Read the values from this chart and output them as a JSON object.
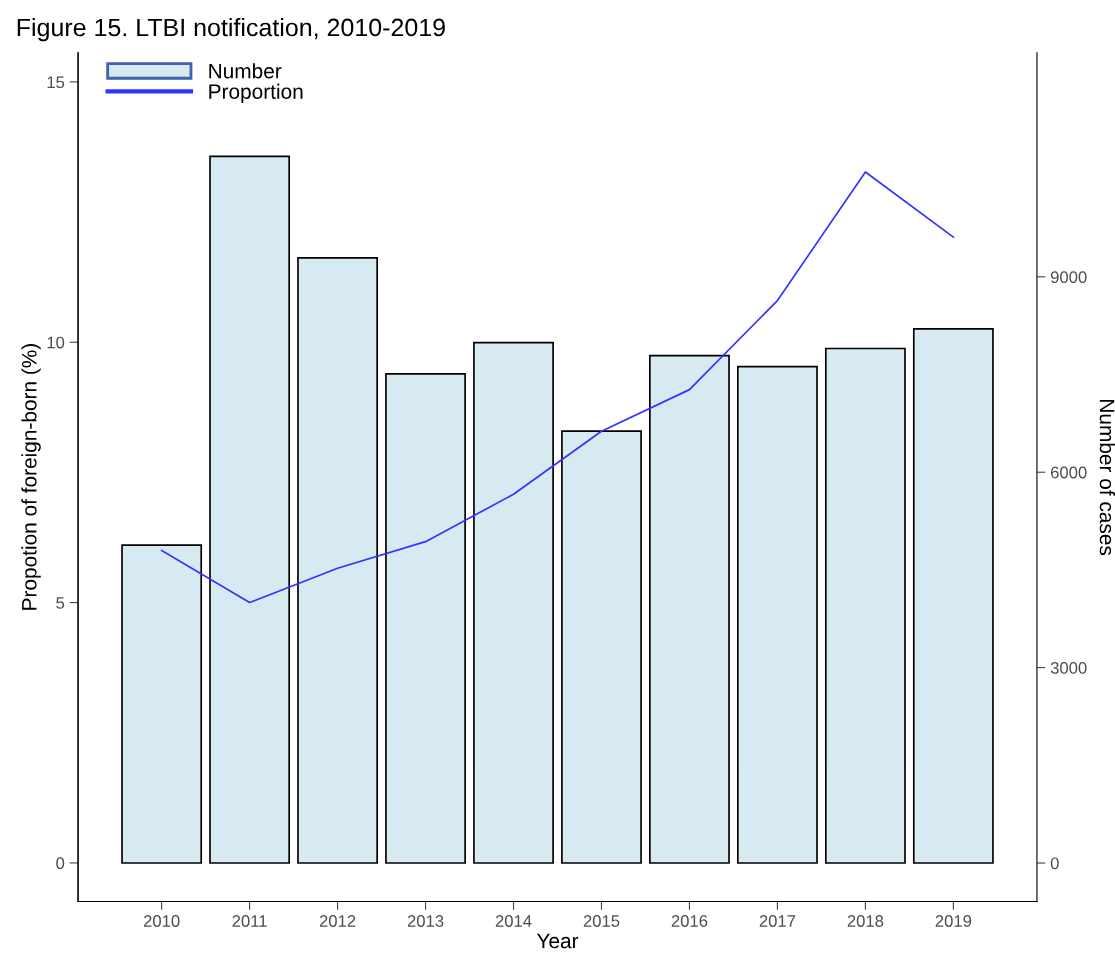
{
  "chart_data": {
    "type": "bar",
    "title": "Figure 15. LTBI notification, 2010-2019",
    "xlabel": "Year",
    "ylabel": "Propotion of foreign-born (%)",
    "y2label": "Number of cases",
    "categories": [
      "2010",
      "2011",
      "2012",
      "2013",
      "2014",
      "2015",
      "2016",
      "2017",
      "2018",
      "2019"
    ],
    "series": [
      {
        "name": "Number",
        "axis": "y2",
        "color": "#d7eaf1",
        "values": [
          4880,
          10850,
          9290,
          7510,
          7990,
          6630,
          7790,
          7620,
          7900,
          8200
        ]
      },
      {
        "name": "Proportion",
        "type": "line",
        "axis": "y",
        "color": "#3333ff",
        "values": [
          6.0,
          5.0,
          5.66,
          6.17,
          7.08,
          8.29,
          9.09,
          10.8,
          13.27,
          12.02
        ]
      }
    ],
    "ylim": [
      -0.74,
      15.56
    ],
    "yticks": [
      0,
      5,
      10,
      15
    ],
    "y2lim": [
      -590,
      12440
    ],
    "y2ticks": [
      0,
      3000,
      6000,
      9000
    ],
    "grid": false,
    "legend": "top left"
  }
}
